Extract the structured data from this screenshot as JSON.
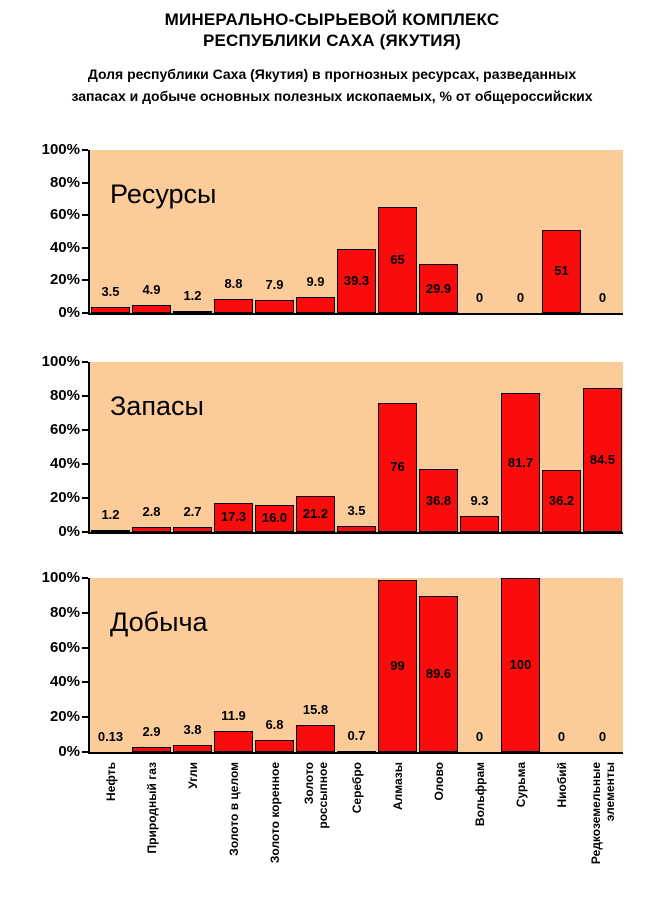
{
  "page": {
    "title_lines": [
      "МИНЕРАЛЬНО-СЫРЬЕВОЙ КОМПЛЕКС",
      "РЕСПУБЛИКИ САХА (ЯКУТИЯ)"
    ],
    "subtitle_lines": [
      "Доля республики Саха (Якутия) в прогнозных ресурсах, разведанных",
      "запасах и добыче основных полезных ископаемых, % от общероссийских"
    ]
  },
  "colors": {
    "plot_background": "#FBCC99",
    "bar_fill": "#FA0C0C",
    "bar_border": "#000000",
    "axis": "#000000",
    "text": "#000000"
  },
  "y_axis": {
    "tick_labels": [
      "0%",
      "20%",
      "40%",
      "60%",
      "80%",
      "100%"
    ]
  },
  "categories_display": [
    [
      "Нефть"
    ],
    [
      "Природный газ"
    ],
    [
      "Угли"
    ],
    [
      "Золото в целом"
    ],
    [
      "Золото коренное"
    ],
    [
      "Золото",
      "россыпное"
    ],
    [
      "Серебро"
    ],
    [
      "Алмазы"
    ],
    [
      "Олово"
    ],
    [
      "Вольфрам"
    ],
    [
      "Сурьма"
    ],
    [
      "Ниобий"
    ],
    [
      "Редкоземельные",
      "элементы"
    ]
  ],
  "chart_data": [
    {
      "type": "bar",
      "title": "Ресурсы",
      "categories": [
        "Нефть",
        "Природный газ",
        "Угли",
        "Золото в целом",
        "Золото коренное",
        "Золото россыпное",
        "Серебро",
        "Алмазы",
        "Олово",
        "Вольфрам",
        "Сурьма",
        "Ниобий",
        "Редкоземельные элементы"
      ],
      "values": [
        3.5,
        4.9,
        1.2,
        8.8,
        7.9,
        9.9,
        39.3,
        65,
        29.9,
        0,
        0,
        51,
        0
      ],
      "value_labels": [
        "3.5",
        "4.9",
        "1.2",
        "8.8",
        "7.9",
        "9.9",
        "39.3",
        "65",
        "29.9",
        "0",
        "0",
        "51",
        "0"
      ],
      "xlabel": "",
      "ylabel": "",
      "ylim": [
        0,
        100
      ],
      "ytick_values": [
        0,
        20,
        40,
        60,
        80,
        100
      ],
      "grid": false,
      "legend": "none"
    },
    {
      "type": "bar",
      "title": "Запасы",
      "categories": [
        "Нефть",
        "Природный газ",
        "Угли",
        "Золото в целом",
        "Золото коренное",
        "Золото россыпное",
        "Серебро",
        "Алмазы",
        "Олово",
        "Вольфрам",
        "Сурьма",
        "Ниобий",
        "Редкоземельные элементы"
      ],
      "values": [
        1.2,
        2.8,
        2.7,
        17.3,
        16.0,
        21.2,
        3.5,
        76,
        36.8,
        9.3,
        81.7,
        36.2,
        84.5
      ],
      "value_labels": [
        "1.2",
        "2.8",
        "2.7",
        "17.3",
        "16.0",
        "21.2",
        "3.5",
        "76",
        "36.8",
        "9.3",
        "81.7",
        "36.2",
        "84.5"
      ],
      "xlabel": "",
      "ylabel": "",
      "ylim": [
        0,
        100
      ],
      "ytick_values": [
        0,
        20,
        40,
        60,
        80,
        100
      ],
      "grid": false,
      "legend": "none"
    },
    {
      "type": "bar",
      "title": "Добыча",
      "categories": [
        "Нефть",
        "Природный газ",
        "Угли",
        "Золото в целом",
        "Золото коренное",
        "Золото россыпное",
        "Серебро",
        "Алмазы",
        "Олово",
        "Вольфрам",
        "Сурьма",
        "Ниобий",
        "Редкоземельные элементы"
      ],
      "values": [
        0.13,
        2.9,
        3.8,
        11.9,
        6.8,
        15.8,
        0.7,
        99,
        89.6,
        0,
        100,
        0,
        0
      ],
      "value_labels": [
        "0.13",
        "2.9",
        "3.8",
        "11.9",
        "6.8",
        "15.8",
        "0.7",
        "99",
        "89.6",
        "0",
        "100",
        "0",
        "0"
      ],
      "xlabel": "",
      "ylabel": "",
      "ylim": [
        0,
        100
      ],
      "ytick_values": [
        0,
        20,
        40,
        60,
        80,
        100
      ],
      "grid": false,
      "legend": "none"
    }
  ]
}
